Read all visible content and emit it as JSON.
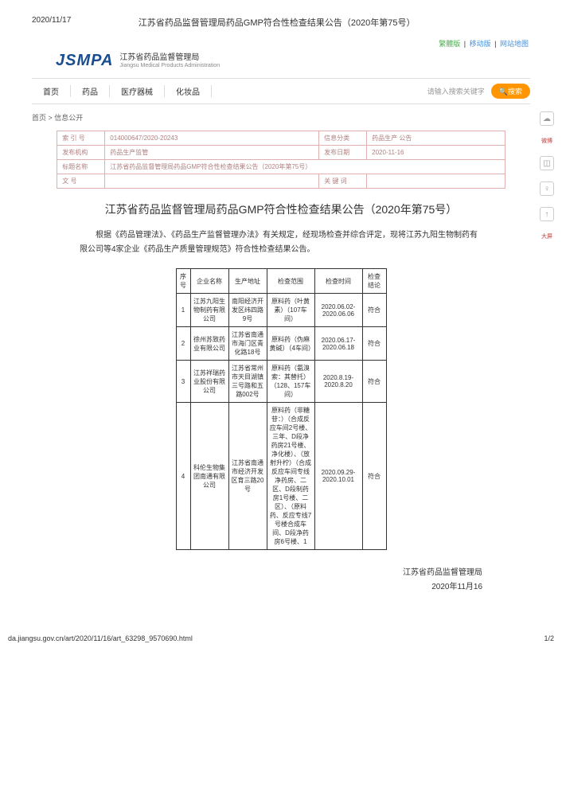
{
  "header": {
    "date": "2020/11/17",
    "title": "江苏省药品监督管理局药品GMP符合性检查结果公告（2020年第75号）"
  },
  "topLinks": {
    "l1": "繁體版",
    "l2": "移动版",
    "l3": "网站地图"
  },
  "logo": {
    "main": "JSMPA",
    "cn": "江苏省药品监督管理局",
    "en": "Jiangsu Medical Products Administration"
  },
  "nav": {
    "n1": "首页",
    "n2": "药品",
    "n3": "医疗器械",
    "n4": "化妆品",
    "searchPlaceholder": "请输入搜索关键字",
    "searchBtn": "搜索"
  },
  "breadcrumb": "首页 > 信息公开",
  "info": {
    "idx_label": "索  引  号",
    "idx_val": "014000647/2020-20243",
    "cat_label": "信息分类",
    "cat_val": "药品生产  公告",
    "org_label": "发布机构",
    "org_val": "药品生产监管",
    "date_label": "发布日期",
    "date_val": "2020-11-16",
    "doc_label": "标题名称",
    "doc_val": "江苏省药品监督管理局药品GMP符合性检查结果公告（2020年第75号）",
    "no_label": "文      号",
    "key_label": "关  键  词"
  },
  "mainTitle": "江苏省药品监督管理局药品GMP符合性检查结果公告（2020年第75号）",
  "intro": "根据《药品管理法》、《药品生产监督管理办法》有关规定，经现场检查并综合评定，现将江苏九阳生物制药有限公司等4家企业《药品生产质量管理规范》符合性检查结果公告。",
  "table": {
    "h1": "序号",
    "h2": "企业名称",
    "h3": "生产地址",
    "h4": "检查范围",
    "h5": "检查时间",
    "h6": "检查结论",
    "rows": [
      {
        "idx": "1",
        "name": "江苏九阳生物制药有限公司",
        "addr": "南阳经济开发区纬四路9号",
        "scope": "原料药（叶黄素）（107车间）",
        "time": "2020.06.02-2020.06.06",
        "result": "符合"
      },
      {
        "idx": "2",
        "name": "徐州苏致药业有限公司",
        "addr": "江苏省南通市海门区青化路18号",
        "scope": "原料药（伪麻黄碱）（4车间）",
        "time": "2020.06.17-2020.06.18",
        "result": "符合"
      },
      {
        "idx": "3",
        "name": "江苏祥瑞药业股份有限公司",
        "addr": "江苏省常州市天目湖镇三号路和五路002号",
        "scope": "原料药（氨溴索：其替托）（128、157车间）",
        "time": "2020.8.19-2020.8.20",
        "result": "符合"
      },
      {
        "idx": "4",
        "name": "科伦生物集团南通有限公司",
        "addr": "江苏省南通市经济开发区育三路20号",
        "scope": "原料药（非糖苷：）（合成反应车间2号楼、三年、D段净药房21号楼、净化楼）、（放射升柠）（合成反应车间专线净药房、二区、D段制药房1号楼、二区）、（原料药、反应专线7号楼合成车间、D段净药房6号楼、1",
        "time": "2020.09.29-2020.10.01",
        "result": "符合"
      }
    ]
  },
  "signature": {
    "org": "江苏省药品监督管理局",
    "date": "2020年11月16"
  },
  "footer": {
    "url": "da.jiangsu.gov.cn/art/2020/11/16/art_63298_9570690.html",
    "page": "1/2"
  },
  "side": {
    "s1": "微博",
    "s2": "大屏"
  }
}
